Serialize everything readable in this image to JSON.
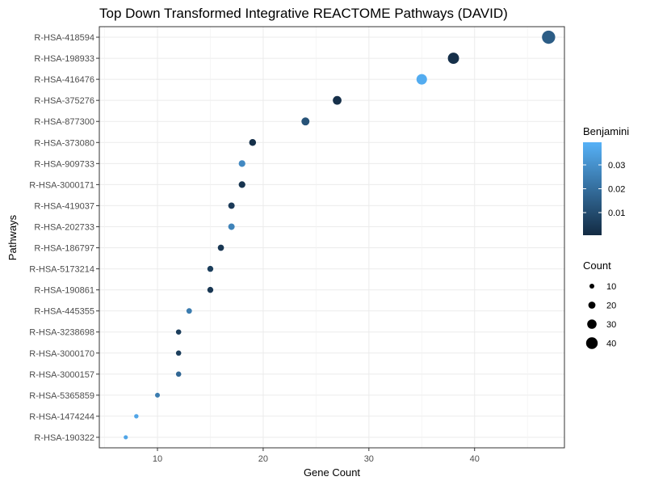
{
  "chart_data": {
    "type": "scatter",
    "title": "Top Down Transformed Integrative REACTOME Pathways (DAVID)",
    "xlabel": "Gene Count",
    "ylabel": "Pathways",
    "xlim": [
      4.5,
      48.5
    ],
    "xticks": [
      10,
      20,
      30,
      40
    ],
    "grid": true,
    "points": [
      {
        "pathway": "R-HSA-418594",
        "count": 47,
        "benjamini": 0.015
      },
      {
        "pathway": "R-HSA-198933",
        "count": 38,
        "benjamini": 0.002
      },
      {
        "pathway": "R-HSA-416476",
        "count": 35,
        "benjamini": 0.038
      },
      {
        "pathway": "R-HSA-375276",
        "count": 27,
        "benjamini": 0.002
      },
      {
        "pathway": "R-HSA-877300",
        "count": 24,
        "benjamini": 0.012
      },
      {
        "pathway": "R-HSA-373080",
        "count": 19,
        "benjamini": 0.002
      },
      {
        "pathway": "R-HSA-909733",
        "count": 18,
        "benjamini": 0.028
      },
      {
        "pathway": "R-HSA-3000171",
        "count": 18,
        "benjamini": 0.003
      },
      {
        "pathway": "R-HSA-419037",
        "count": 17,
        "benjamini": 0.005
      },
      {
        "pathway": "R-HSA-202733",
        "count": 17,
        "benjamini": 0.026
      },
      {
        "pathway": "R-HSA-186797",
        "count": 16,
        "benjamini": 0.004
      },
      {
        "pathway": "R-HSA-5173214",
        "count": 15,
        "benjamini": 0.006
      },
      {
        "pathway": "R-HSA-190861",
        "count": 15,
        "benjamini": 0.004
      },
      {
        "pathway": "R-HSA-445355",
        "count": 13,
        "benjamini": 0.024
      },
      {
        "pathway": "R-HSA-3238698",
        "count": 12,
        "benjamini": 0.006
      },
      {
        "pathway": "R-HSA-3000170",
        "count": 12,
        "benjamini": 0.006
      },
      {
        "pathway": "R-HSA-3000157",
        "count": 12,
        "benjamini": 0.018
      },
      {
        "pathway": "R-HSA-5365859",
        "count": 10,
        "benjamini": 0.024
      },
      {
        "pathway": "R-HSA-1474244",
        "count": 8,
        "benjamini": 0.036
      },
      {
        "pathway": "R-HSA-190322",
        "count": 7,
        "benjamini": 0.036
      }
    ],
    "legend_color": {
      "title": "Benjamini",
      "range": [
        0.0005,
        0.0395
      ],
      "ticks": [
        0.01,
        0.02,
        0.03
      ],
      "tick_labels": [
        "0.01",
        "0.02",
        "0.03"
      ],
      "low_color": "#132B43",
      "high_color": "#56B1F7",
      "placement": "right"
    },
    "legend_size": {
      "title": "Count",
      "ticks": [
        10,
        20,
        30,
        40
      ],
      "tick_labels": [
        "10",
        "20",
        "30",
        "40"
      ],
      "placement": "right"
    }
  }
}
